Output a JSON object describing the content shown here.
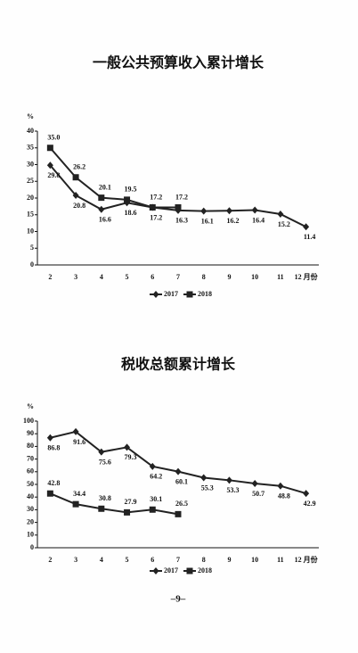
{
  "chart_data": [
    {
      "type": "line",
      "title": "一般公共预算收入累计增长",
      "y_unit": "%",
      "categories": [
        "2",
        "3",
        "4",
        "5",
        "6",
        "7",
        "8",
        "9",
        "10",
        "11",
        "12 月份"
      ],
      "series": [
        {
          "name": "2017",
          "color": "#222222",
          "marker": "diamond",
          "values": [
            29.8,
            20.8,
            16.6,
            18.6,
            17.2,
            16.3,
            16.1,
            16.2,
            16.4,
            15.2,
            11.4
          ],
          "value_labels": [
            "29.8",
            "20.8",
            "16.6",
            "18.6",
            "17.2",
            "16.3",
            "16.1",
            "16.2",
            "16.4",
            "15.2",
            "11.4"
          ]
        },
        {
          "name": "2018",
          "color": "#222222",
          "marker": "square",
          "values": [
            35,
            26.2,
            20.1,
            19.5,
            17.2,
            17.2,
            null,
            null,
            null,
            null,
            null
          ],
          "value_labels": [
            "35.0",
            "26.2",
            "20.1",
            "19.5",
            "17.2",
            "17.2",
            null,
            null,
            null,
            null,
            null
          ]
        }
      ],
      "ylim": [
        0,
        40
      ],
      "yticks": [
        0,
        5,
        10,
        15,
        20,
        25,
        30,
        35,
        40
      ],
      "grid": false
    },
    {
      "type": "line",
      "title": "税收总额累计增长",
      "y_unit": "%",
      "categories": [
        "2",
        "3",
        "4",
        "5",
        "6",
        "7",
        "8",
        "9",
        "10",
        "11",
        "12 月份"
      ],
      "series": [
        {
          "name": "2017",
          "color": "#222222",
          "marker": "diamond",
          "values": [
            86.8,
            91.6,
            75.6,
            79.3,
            64.2,
            60.1,
            55.3,
            53.3,
            50.7,
            48.8,
            42.9
          ]
        },
        {
          "name": "2018",
          "color": "#222222",
          "marker": "square",
          "values": [
            42.8,
            34.4,
            30.8,
            27.9,
            30.1,
            26.5,
            null,
            null,
            null,
            null,
            null
          ]
        }
      ],
      "ylim": [
        0,
        100
      ],
      "yticks": [
        0,
        10,
        20,
        30,
        40,
        50,
        60,
        70,
        80,
        90,
        100
      ],
      "grid": false
    }
  ],
  "page_number": "–9–"
}
